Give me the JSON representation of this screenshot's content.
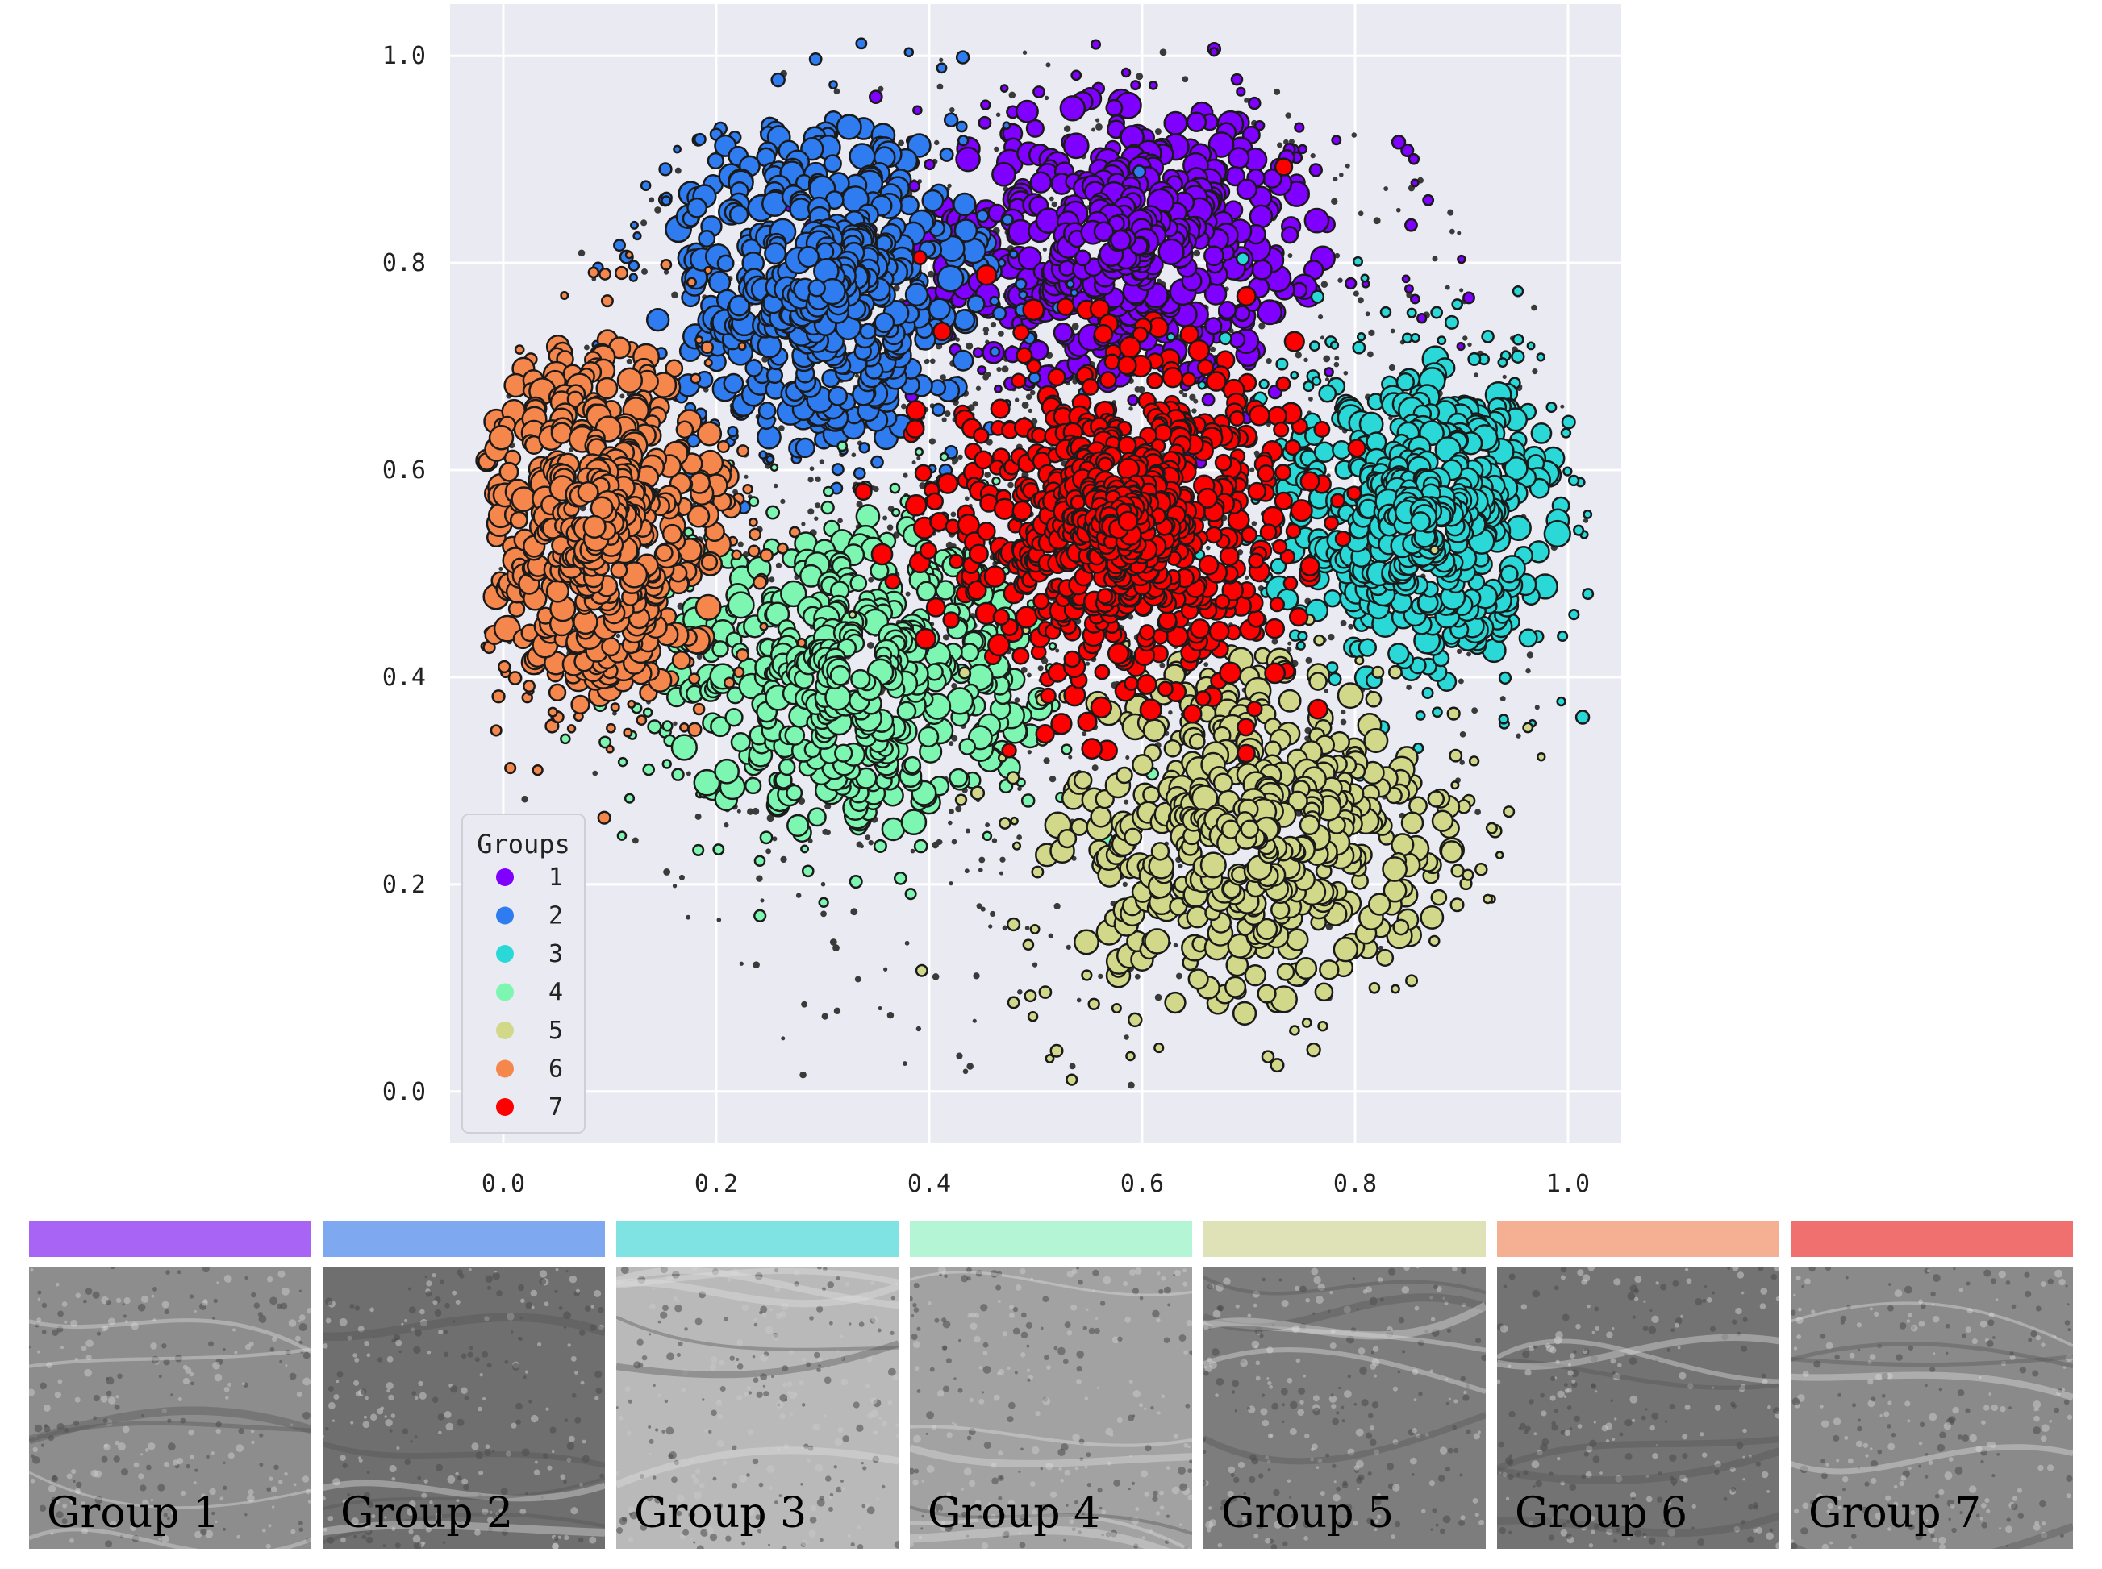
{
  "chart_data": {
    "type": "scatter",
    "xlim": [
      -0.05,
      1.05
    ],
    "ylim": [
      -0.05,
      1.05
    ],
    "x_ticks": [
      0.0,
      0.2,
      0.4,
      0.6,
      0.8,
      1.0
    ],
    "x_tick_labels": [
      "0.0",
      "0.2",
      "0.4",
      "0.6",
      "0.8",
      "1.0"
    ],
    "y_ticks": [
      0.0,
      0.2,
      0.4,
      0.6,
      0.8,
      1.0
    ],
    "y_tick_labels": [
      "0.0",
      "0.2",
      "0.4",
      "0.6",
      "0.8",
      "1.0"
    ],
    "grid": true,
    "background": "#eaeaf2",
    "legend": {
      "title": "Groups",
      "placement": "lower-left"
    },
    "series": [
      {
        "name": "1",
        "color": "#7f00ff",
        "center": [
          0.58,
          0.82
        ],
        "spread": [
          0.11,
          0.08
        ]
      },
      {
        "name": "2",
        "color": "#2f7cf0",
        "center": [
          0.3,
          0.78
        ],
        "spread": [
          0.09,
          0.09
        ]
      },
      {
        "name": "3",
        "color": "#2ad8d8",
        "center": [
          0.86,
          0.55
        ],
        "spread": [
          0.08,
          0.09
        ]
      },
      {
        "name": "4",
        "color": "#7cf6b0",
        "center": [
          0.33,
          0.4
        ],
        "spread": [
          0.1,
          0.09
        ]
      },
      {
        "name": "5",
        "color": "#d2d88a",
        "center": [
          0.7,
          0.25
        ],
        "spread": [
          0.11,
          0.1
        ]
      },
      {
        "name": "6",
        "color": "#f5874d",
        "center": [
          0.09,
          0.55
        ],
        "spread": [
          0.07,
          0.1
        ]
      },
      {
        "name": "7",
        "color": "#ff0000",
        "center": [
          0.58,
          0.55
        ],
        "spread": [
          0.08,
          0.08
        ]
      }
    ]
  },
  "groups_panel": [
    {
      "label": "Group 1",
      "color": "#a864f5",
      "tone": "#8d8d8d"
    },
    {
      "label": "Group 2",
      "color": "#7ea8f0",
      "tone": "#6f6f6f"
    },
    {
      "label": "Group 3",
      "color": "#80e3e3",
      "tone": "#b9b9b9"
    },
    {
      "label": "Group 4",
      "color": "#b3f5d4",
      "tone": "#a2a2a2"
    },
    {
      "label": "Group 5",
      "color": "#dfe2b6",
      "tone": "#7d7d7d"
    },
    {
      "label": "Group 6",
      "color": "#f5b093",
      "tone": "#737373"
    },
    {
      "label": "Group 7",
      "color": "#f07070",
      "tone": "#8a8a8a"
    }
  ]
}
